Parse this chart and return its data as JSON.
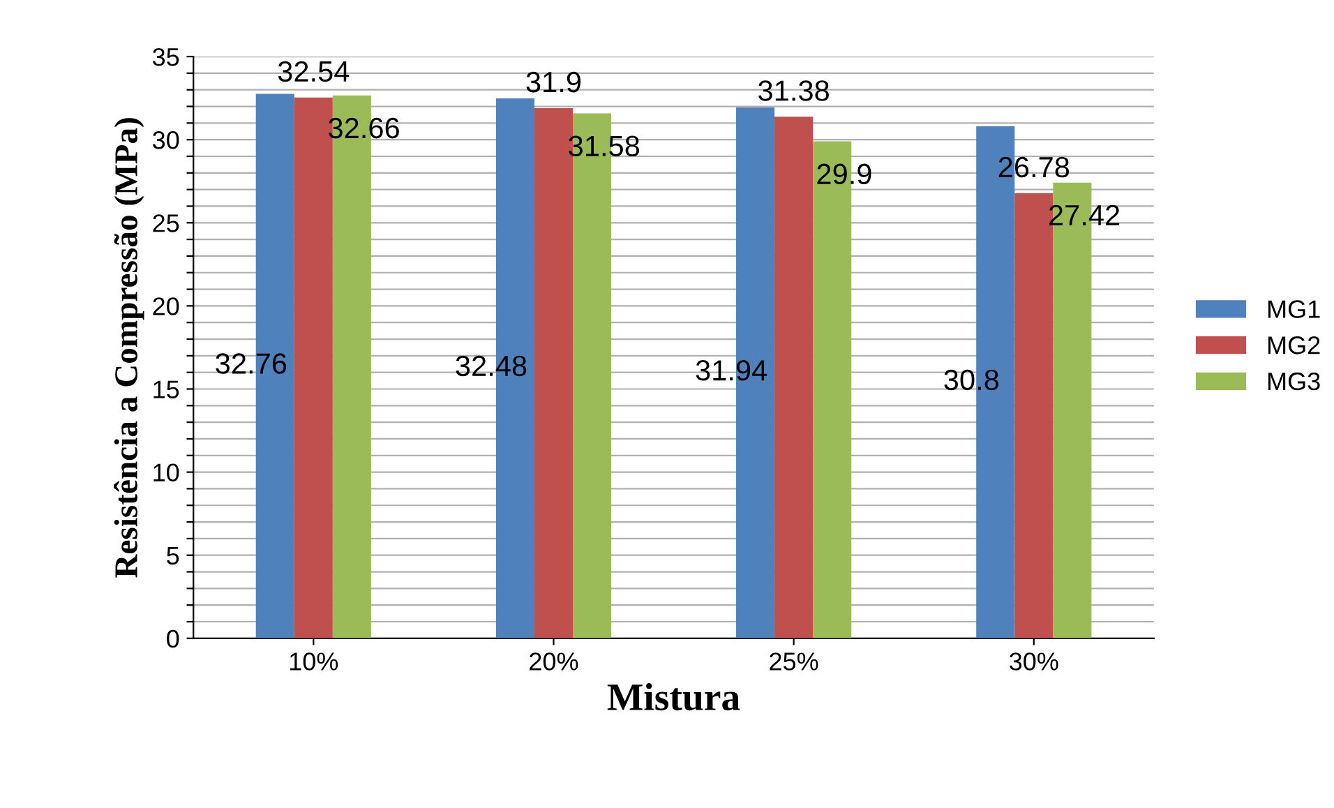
{
  "chart_data": {
    "type": "bar",
    "xlabel": "Mistura",
    "ylabel": "Resistência a Compressão (MPa)",
    "categories": [
      "10%",
      "20%",
      "25%",
      "30%"
    ],
    "series": [
      {
        "name": "MG1",
        "color": "#4f81bd",
        "values": [
          32.76,
          32.48,
          31.94,
          30.8
        ]
      },
      {
        "name": "MG2",
        "color": "#c0504d",
        "values": [
          32.54,
          31.9,
          31.38,
          26.78
        ]
      },
      {
        "name": "MG3",
        "color": "#9bbb59",
        "values": [
          32.66,
          31.58,
          29.9,
          27.42
        ]
      }
    ],
    "ylim": [
      0,
      35
    ],
    "yticks": [
      0,
      {
        "value": 1,
        "label": null
      },
      {
        "value": 2,
        "label": null
      },
      {
        "value": 3,
        "label": null
      },
      {
        "value": 4,
        "label": null
      },
      5,
      {
        "value": 6,
        "label": null
      },
      {
        "value": 7,
        "label": null
      },
      {
        "value": 8,
        "label": null
      },
      {
        "value": 9,
        "label": null
      },
      10,
      {
        "value": 11,
        "label": null
      },
      {
        "value": 12,
        "label": null
      },
      {
        "value": 13,
        "label": null
      },
      {
        "value": 14,
        "label": null
      },
      15,
      {
        "value": 16,
        "label": null
      },
      {
        "value": 17,
        "label": null
      },
      {
        "value": 18,
        "label": null
      },
      {
        "value": 19,
        "label": null
      },
      20,
      {
        "value": 21,
        "label": null
      },
      {
        "value": 22,
        "label": null
      },
      {
        "value": 23,
        "label": null
      },
      {
        "value": 24,
        "label": null
      },
      25,
      {
        "value": 26,
        "label": null
      },
      {
        "value": 27,
        "label": null
      },
      {
        "value": 28,
        "label": null
      },
      {
        "value": 29,
        "label": null
      },
      30,
      {
        "value": 31,
        "label": null
      },
      {
        "value": 32,
        "label": null
      },
      {
        "value": 33,
        "label": null
      },
      {
        "value": 34,
        "label": null
      },
      35
    ],
    "grid": "y",
    "legend": "right",
    "data_labels": true
  }
}
